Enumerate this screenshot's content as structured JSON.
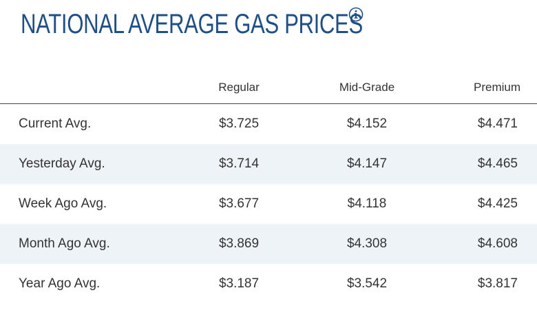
{
  "header": {
    "title": "NATIONAL AVERAGE GAS PRICES",
    "info_icon": "info-circle-icon"
  },
  "table": {
    "columns": [
      "",
      "Regular",
      "Mid-Grade",
      "Premium"
    ],
    "rows": [
      {
        "label": "Current Avg.",
        "regular": "$3.725",
        "mid_grade": "$4.152",
        "premium": "$4.471"
      },
      {
        "label": "Yesterday Avg.",
        "regular": "$3.714",
        "mid_grade": "$4.147",
        "premium": "$4.465"
      },
      {
        "label": "Week Ago Avg.",
        "regular": "$3.677",
        "mid_grade": "$4.118",
        "premium": "$4.425"
      },
      {
        "label": "Month Ago Avg.",
        "regular": "$3.869",
        "mid_grade": "$4.308",
        "premium": "$4.608"
      },
      {
        "label": "Year Ago Avg.",
        "regular": "$3.187",
        "mid_grade": "$3.542",
        "premium": "$3.817"
      }
    ]
  },
  "colors": {
    "title": "#1f4f85",
    "text": "#333333",
    "stripe": "#eef3f8",
    "header_rule": "#444444"
  }
}
